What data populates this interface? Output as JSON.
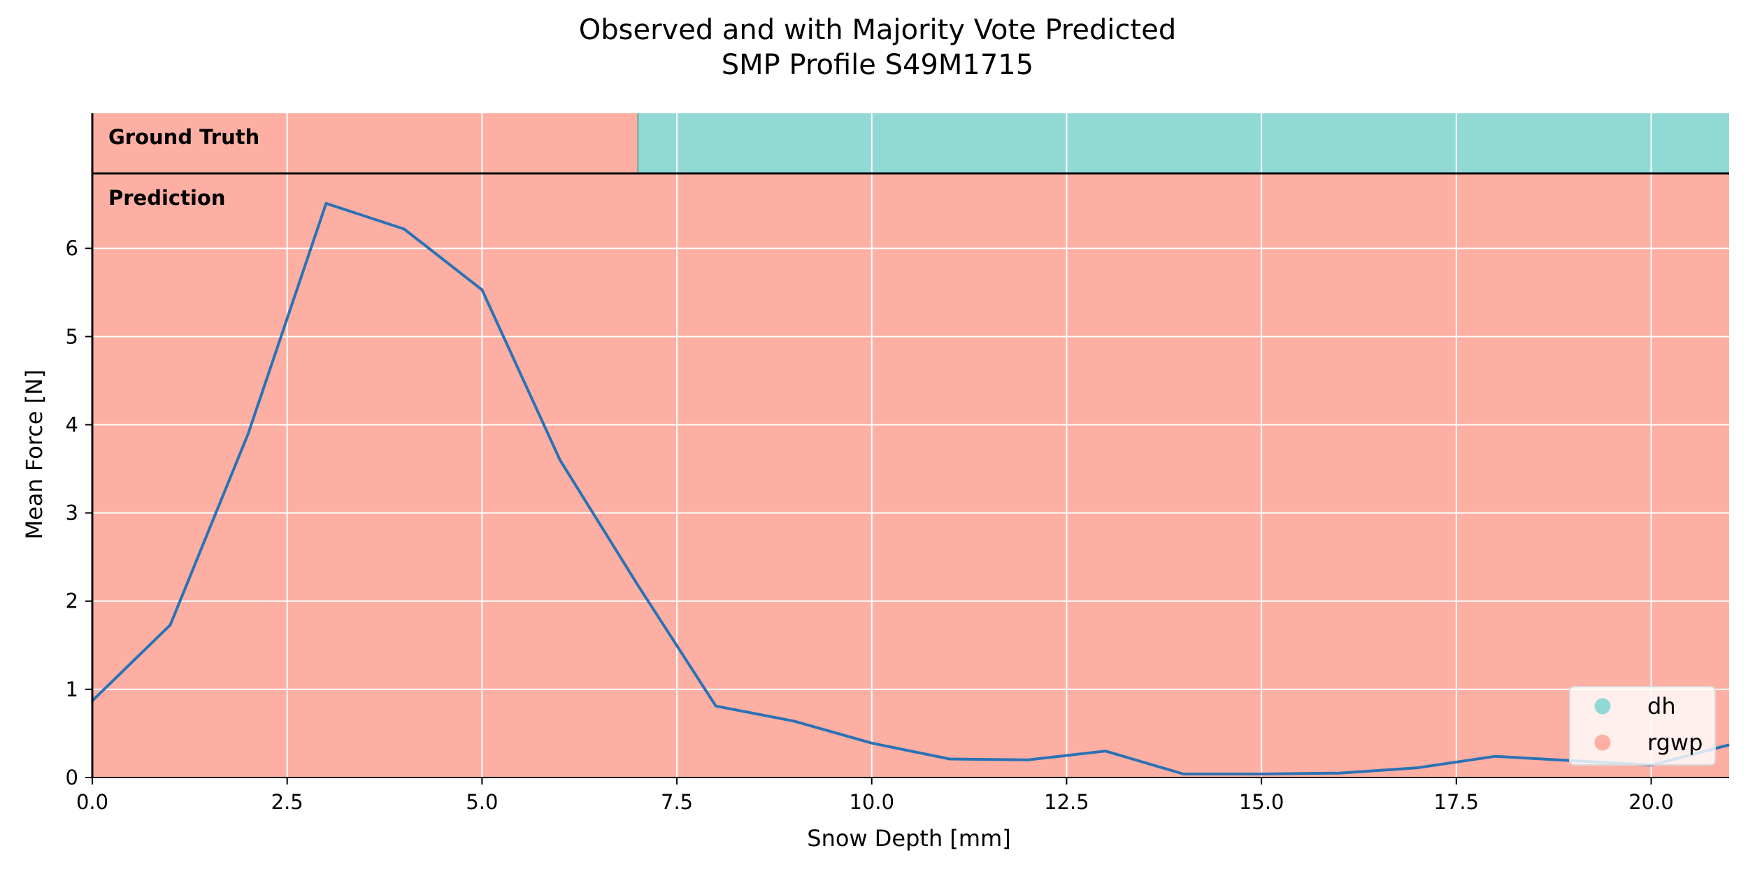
{
  "chart_data": {
    "type": "line",
    "title": "Observed and with Majority Vote Predicted",
    "subtitle": "SMP Profile S49M1715",
    "xlabel": "Snow Depth [mm]",
    "ylabel": "Mean Force [N]",
    "xlim": [
      0,
      21
    ],
    "ylim": [
      0,
      6.85
    ],
    "xticks": [
      0,
      2.5,
      5,
      7.5,
      10,
      12.5,
      15,
      17.5,
      20
    ],
    "xtick_labels": [
      "0.0",
      "2.5",
      "5.0",
      "7.5",
      "10.0",
      "12.5",
      "15.0",
      "17.5",
      "20.0"
    ],
    "yticks": [
      0,
      1,
      2,
      3,
      4,
      5,
      6
    ],
    "ytick_labels": [
      "0",
      "1",
      "2",
      "3",
      "4",
      "5",
      "6"
    ],
    "grid": true,
    "legend_position": "bottom-right",
    "line_color": "#2a72b5",
    "series": [
      {
        "x": [
          0,
          1,
          2,
          3,
          4,
          5,
          6,
          7,
          8,
          9,
          10,
          11,
          12,
          13,
          14,
          15,
          16,
          17,
          18,
          19,
          20,
          21
        ],
        "values": [
          0.87,
          1.73,
          3.9,
          6.51,
          6.22,
          5.53,
          3.6,
          2.18,
          0.81,
          0.64,
          0.39,
          0.21,
          0.2,
          0.3,
          0.04,
          0.04,
          0.05,
          0.11,
          0.24,
          0.19,
          0.14,
          0.37
        ]
      }
    ],
    "ground_truth": {
      "label": "Ground Truth",
      "segments": [
        {
          "start": 0,
          "end": 7,
          "class": "rgwp"
        },
        {
          "start": 7,
          "end": 21,
          "class": "dh"
        }
      ]
    },
    "prediction": {
      "label": "Prediction",
      "segments": [
        {
          "start": 0,
          "end": 21,
          "class": "rgwp"
        }
      ]
    },
    "classes": [
      {
        "name": "dh",
        "color": "#91d9d4"
      },
      {
        "name": "rgwp",
        "color": "#feafa3"
      }
    ]
  }
}
